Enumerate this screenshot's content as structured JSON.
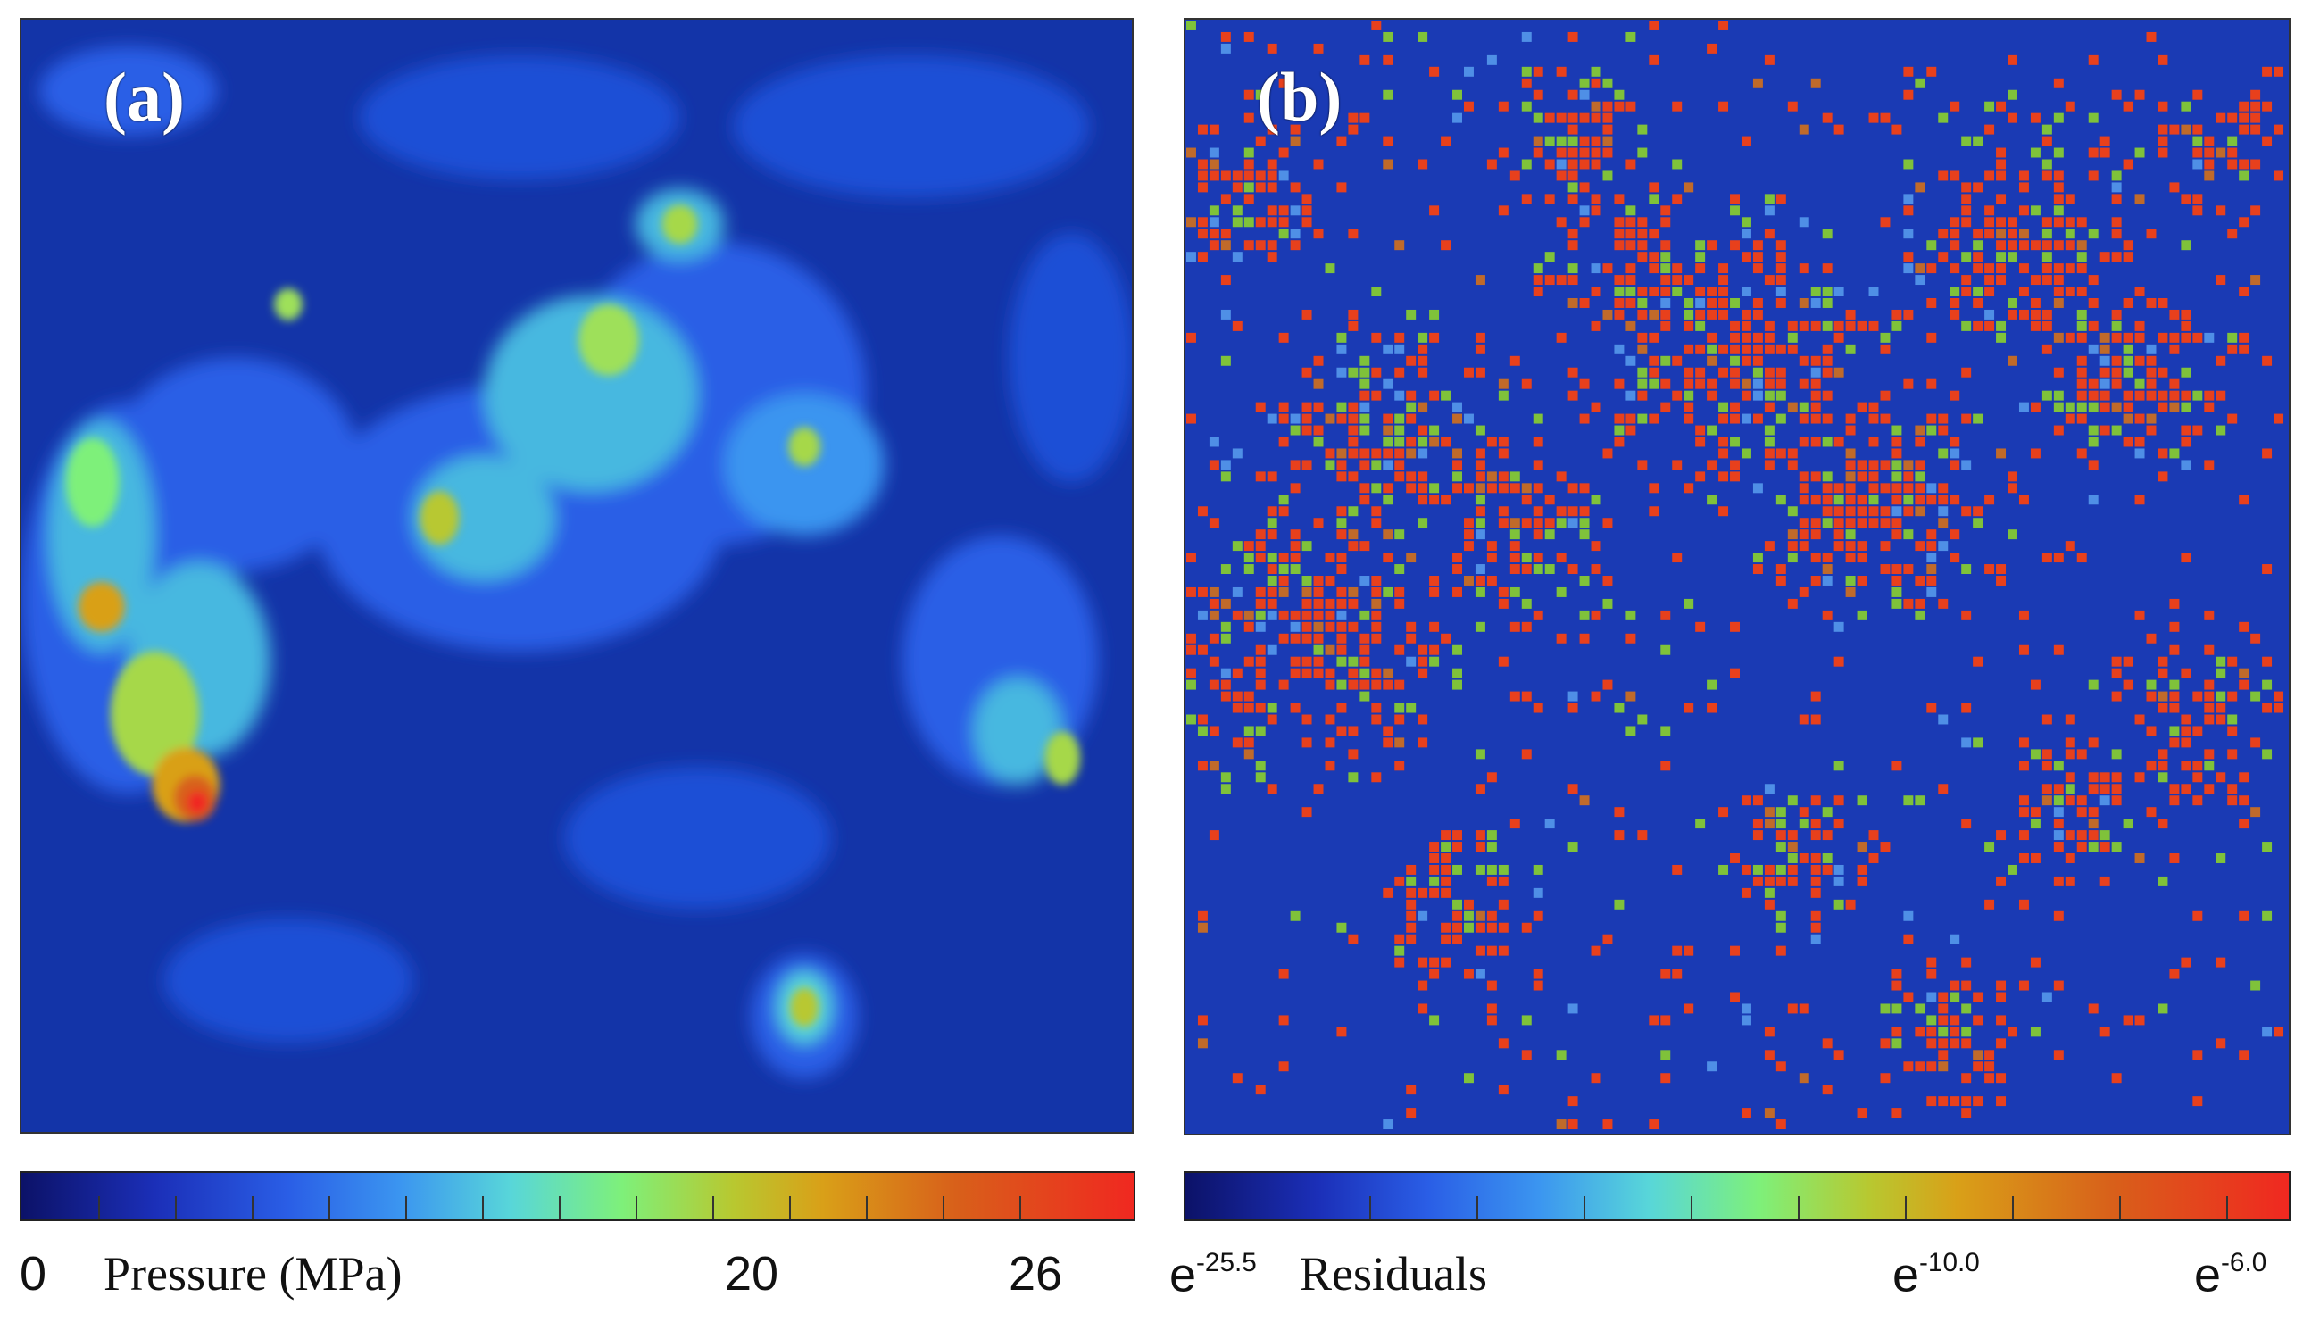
{
  "panel_a": {
    "label": "(a)",
    "colorbar": {
      "min_label": "0",
      "title": "Pressure (MPa)",
      "mid_label": "20",
      "max_label": "26",
      "colors": [
        "#0c1268",
        "#1b2fb8",
        "#2a5ee6",
        "#3b95f0",
        "#58d6d9",
        "#7ef07a",
        "#b8c830",
        "#d9a018",
        "#d8601a",
        "#f02820"
      ]
    }
  },
  "panel_b": {
    "label": "(b)",
    "colorbar": {
      "min_base": "e",
      "min_exp": "-25.5",
      "title": "Residuals",
      "mid_base": "e",
      "mid_exp": "-10.0",
      "max_base": "e",
      "max_exp": "-6.0",
      "colors": [
        "#0c1268",
        "#1b2fb8",
        "#2a5ee6",
        "#3b95f0",
        "#58d6d9",
        "#7ef07a",
        "#b8c830",
        "#d9a018",
        "#d8601a",
        "#f02820"
      ]
    }
  }
}
